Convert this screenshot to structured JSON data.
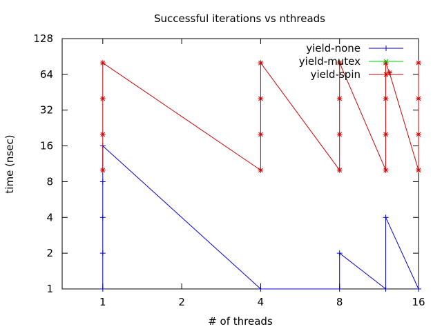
{
  "chart_data": {
    "type": "line",
    "title": "Successful iterations vs nthreads",
    "xlabel": "# of threads",
    "ylabel": "time (nsec)",
    "x_scale": "log2",
    "y_scale": "log2",
    "xlim": [
      0.7,
      16
    ],
    "ylim": [
      1,
      128
    ],
    "x_ticks": [
      1,
      2,
      4,
      8,
      16
    ],
    "x_tick_labels": [
      "1",
      "2",
      "4",
      "8",
      "16"
    ],
    "y_ticks": [
      1,
      2,
      4,
      8,
      16,
      32,
      64,
      128
    ],
    "y_tick_labels": [
      "1",
      "2",
      "4",
      "8",
      "16",
      "32",
      "64",
      "128"
    ],
    "legend_position": "top-right",
    "series": [
      {
        "name": "yield-none",
        "color": "#0000cc",
        "marker": "plus",
        "points": [
          [
            1,
            1
          ],
          [
            1,
            2
          ],
          [
            1,
            4
          ],
          [
            1,
            8
          ],
          [
            1,
            16
          ],
          [
            4,
            1
          ],
          [
            8,
            1
          ],
          [
            8,
            2
          ],
          [
            12,
            1
          ],
          [
            12,
            4
          ],
          [
            16,
            1
          ]
        ]
      },
      {
        "name": "yield-mutex",
        "color": "#00cc00",
        "marker": "cross",
        "points": []
      },
      {
        "name": "yield-spin",
        "color": "#cc0000",
        "marker": "star",
        "points": [
          [
            1,
            10
          ],
          [
            1,
            20
          ],
          [
            1,
            40
          ],
          [
            1,
            80
          ],
          [
            4,
            10
          ],
          [
            4,
            20
          ],
          [
            4,
            40
          ],
          [
            4,
            80
          ],
          [
            8,
            10
          ],
          [
            8,
            20
          ],
          [
            8,
            40
          ],
          [
            8,
            80
          ],
          [
            12,
            10
          ],
          [
            12,
            20
          ],
          [
            12,
            40
          ],
          [
            12,
            80
          ],
          [
            12.4,
            66
          ],
          [
            16,
            10
          ],
          [
            16,
            20
          ],
          [
            16,
            40
          ],
          [
            16,
            80
          ]
        ]
      }
    ]
  }
}
